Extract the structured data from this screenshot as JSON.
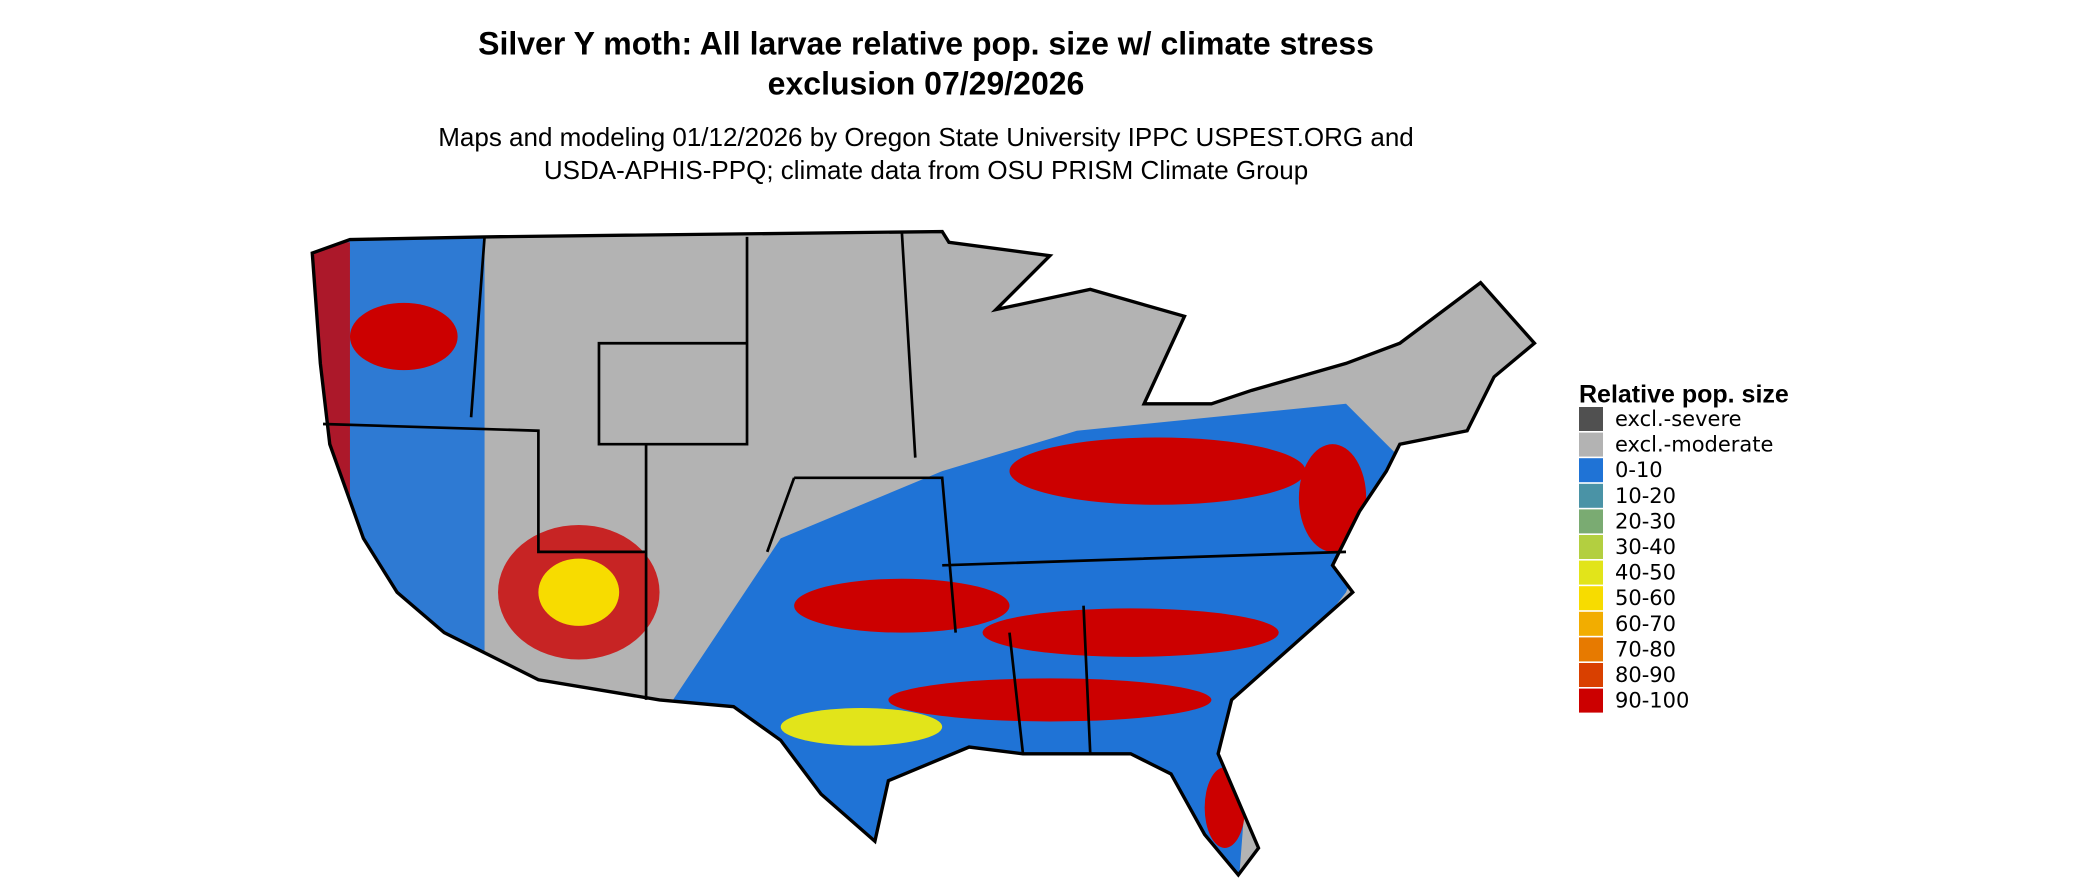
{
  "title": [
    "Silver Y moth: All larvae relative pop. size w/ climate stress",
    "exclusion 07/29/2026"
  ],
  "subtitle": [
    "Maps and modeling 01/12/2026 by Oregon State University IPPC USPEST.ORG and",
    "USDA-APHIS-PPQ; climate data from OSU PRISM Climate Group"
  ],
  "legend": {
    "title": "Relative pop. size",
    "items": [
      {
        "label": "excl.-severe",
        "color": "#505050"
      },
      {
        "label": "excl.-moderate",
        "color": "#b3b3b3"
      },
      {
        "label": "0-10",
        "color": "#1f73d6"
      },
      {
        "label": "10-20",
        "color": "#4a93a6"
      },
      {
        "label": "20-30",
        "color": "#7aab72"
      },
      {
        "label": "30-40",
        "color": "#b3cf40"
      },
      {
        "label": "40-50",
        "color": "#e2e41a"
      },
      {
        "label": "50-60",
        "color": "#f7dc00"
      },
      {
        "label": "60-70",
        "color": "#f2ad00"
      },
      {
        "label": "70-80",
        "color": "#e77a00"
      },
      {
        "label": "80-90",
        "color": "#d94000"
      },
      {
        "label": "90-100",
        "color": "#cc0000"
      }
    ]
  }
}
